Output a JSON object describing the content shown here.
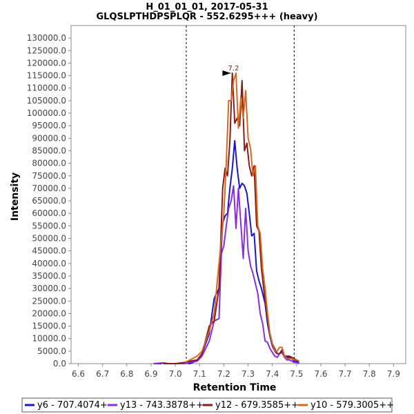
{
  "chart_data": {
    "type": "line",
    "title": "H_01_01_01, 2017-05-31",
    "subtitle": "GLQSLPTHDPSPLQR - 552.6295+++ (heavy)",
    "xlabel": "Retention Time",
    "ylabel": "Intensity",
    "xlim": [
      6.57,
      7.95
    ],
    "ylim": [
      0,
      135000
    ],
    "xticks": [
      "6.6",
      "6.7",
      "6.8",
      "6.9",
      "7.0",
      "7.1",
      "7.2",
      "7.3",
      "7.4",
      "7.5",
      "7.6",
      "7.7",
      "7.8",
      "7.9"
    ],
    "yticks": [
      "0.0",
      "5000.0",
      "10000.0",
      "15000.0",
      "20000.0",
      "25000.0",
      "30000.0",
      "35000.0",
      "40000.0",
      "45000.0",
      "50000.0",
      "55000.0",
      "60000.0",
      "65000.0",
      "70000.0",
      "75000.0",
      "80000.0",
      "85000.0",
      "90000.0",
      "95000.0",
      "100000.0",
      "105000.0",
      "110000.0",
      "115000.0",
      "120000.0",
      "125000.0",
      "130000.0"
    ],
    "boundaries": [
      7.045,
      7.49
    ],
    "annotation": {
      "label": "7.2",
      "x": 7.24,
      "y": 116000
    },
    "legend_position": "bottom",
    "series": [
      {
        "name": "y6 - 707.4074+",
        "color": "#1515d0",
        "x": [
          6.91,
          6.94,
          6.95,
          6.97,
          7.0,
          7.02,
          7.04,
          7.06,
          7.09,
          7.11,
          7.14,
          7.16,
          7.18,
          7.195,
          7.205,
          7.215,
          7.225,
          7.235,
          7.245,
          7.255,
          7.265,
          7.275,
          7.285,
          7.295,
          7.305,
          7.315,
          7.325,
          7.335,
          7.345,
          7.355,
          7.37,
          7.38,
          7.39,
          7.4,
          7.41,
          7.42,
          7.43,
          7.44,
          7.45,
          7.46,
          7.47,
          7.48,
          7.49,
          7.5,
          7.51
        ],
        "values": [
          0,
          0,
          300,
          0,
          0,
          0,
          300,
          0,
          1200,
          4000,
          12000,
          26000,
          30000,
          56000,
          59000,
          60000,
          70000,
          78000,
          89000,
          78000,
          70000,
          72000,
          71000,
          68000,
          60000,
          51000,
          52000,
          37000,
          33000,
          30000,
          24000,
          16000,
          11000,
          7000,
          5000,
          4000,
          4000,
          5500,
          3000,
          2500,
          2500,
          2000,
          1000,
          1000,
          500
        ]
      },
      {
        "name": "y13 - 743.3878++",
        "color": "#8a2be2",
        "x": [
          6.91,
          6.95,
          6.97,
          7.0,
          7.02,
          7.04,
          7.06,
          7.09,
          7.11,
          7.14,
          7.16,
          7.18,
          7.19,
          7.2,
          7.21,
          7.22,
          7.23,
          7.24,
          7.25,
          7.26,
          7.27,
          7.28,
          7.29,
          7.3,
          7.31,
          7.32,
          7.33,
          7.34,
          7.35,
          7.36,
          7.37,
          7.38,
          7.39,
          7.4,
          7.41,
          7.42,
          7.43,
          7.44,
          7.45,
          7.46,
          7.47,
          7.48,
          7.49,
          7.5,
          7.51
        ],
        "values": [
          0,
          300,
          0,
          0,
          0,
          0,
          500,
          1000,
          3000,
          9000,
          17000,
          18000,
          44000,
          47000,
          55000,
          62000,
          65000,
          71000,
          54000,
          70000,
          56000,
          42000,
          62000,
          45000,
          39000,
          36000,
          32000,
          28000,
          20000,
          16000,
          9000,
          8500,
          6000,
          4500,
          3000,
          2500,
          4000,
          4500,
          2500,
          1500,
          1500,
          1000,
          500,
          500,
          0
        ]
      },
      {
        "name": "y12 - 679.3585++",
        "color": "#8b1a1a",
        "x": [
          6.95,
          7.0,
          7.04,
          7.06,
          7.09,
          7.11,
          7.14,
          7.16,
          7.18,
          7.195,
          7.205,
          7.215,
          7.225,
          7.235,
          7.245,
          7.255,
          7.265,
          7.275,
          7.285,
          7.295,
          7.305,
          7.315,
          7.325,
          7.335,
          7.345,
          7.355,
          7.37,
          7.38,
          7.39,
          7.4,
          7.41,
          7.42,
          7.43,
          7.44,
          7.45,
          7.46,
          7.47,
          7.48,
          7.49,
          7.5,
          7.51
        ],
        "values": [
          0,
          0,
          500,
          1000,
          1500,
          4000,
          15000,
          17000,
          30000,
          70000,
          78000,
          75000,
          89000,
          116000,
          96000,
          98000,
          95000,
          113000,
          85000,
          88000,
          79000,
          75000,
          79000,
          55000,
          53000,
          38000,
          25000,
          18000,
          12000,
          8000,
          6000,
          4000,
          4000,
          5000,
          3000,
          3000,
          3000,
          2500,
          2000,
          1500,
          1000
        ]
      },
      {
        "name": "y10 - 579.3005++",
        "color": "#d2691e",
        "x": [
          7.04,
          7.06,
          7.09,
          7.11,
          7.14,
          7.16,
          7.18,
          7.2,
          7.21,
          7.22,
          7.23,
          7.24,
          7.25,
          7.26,
          7.27,
          7.28,
          7.29,
          7.3,
          7.31,
          7.32,
          7.33,
          7.34,
          7.35,
          7.36,
          7.37,
          7.38,
          7.39,
          7.4,
          7.41,
          7.42,
          7.43,
          7.44,
          7.45,
          7.46,
          7.47,
          7.48,
          7.49,
          7.5,
          7.51
        ],
        "values": [
          500,
          1500,
          3000,
          5000,
          13000,
          20000,
          40000,
          60000,
          80000,
          105000,
          105000,
          113000,
          116000,
          94000,
          106000,
          98000,
          109000,
          90000,
          86000,
          75000,
          79000,
          55000,
          52000,
          38000,
          30000,
          20000,
          12000,
          8000,
          5000,
          5000,
          6500,
          6500,
          3000,
          2000,
          2000,
          2000,
          1500,
          1500,
          1000
        ]
      }
    ]
  }
}
